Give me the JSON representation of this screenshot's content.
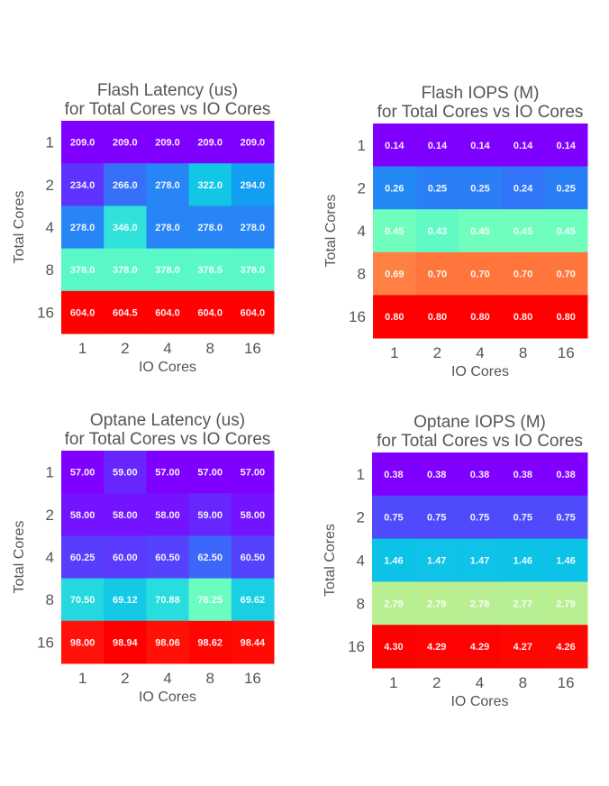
{
  "chart_data": [
    {
      "type": "heatmap",
      "id": "flash-latency",
      "title": "Flash Latency (us)\nfor Total Cores vs IO Cores",
      "xlabel": "IO Cores",
      "ylabel": "Total Cores",
      "x_categories": [
        "1",
        "2",
        "4",
        "8",
        "16"
      ],
      "y_categories": [
        "1",
        "2",
        "4",
        "8",
        "16"
      ],
      "values": [
        [
          209.0,
          209.0,
          209.0,
          209.0,
          209.0
        ],
        [
          234.0,
          266.0,
          278.0,
          322.0,
          294.0
        ],
        [
          278.0,
          346.0,
          278.0,
          278.0,
          278.0
        ],
        [
          378.0,
          378.0,
          378.0,
          378.5,
          378.0
        ],
        [
          604.0,
          604.5,
          604.0,
          604.0,
          604.0
        ]
      ],
      "labels": [
        [
          "209.0",
          "209.0",
          "209.0",
          "209.0",
          "209.0"
        ],
        [
          "234.0",
          "266.0",
          "278.0",
          "322.0",
          "294.0"
        ],
        [
          "278.0",
          "346.0",
          "278.0",
          "278.0",
          "278.0"
        ],
        [
          "378.0",
          "378.0",
          "378.0",
          "378.5",
          "378.0"
        ],
        [
          "604.0",
          "604.5",
          "604.0",
          "604.0",
          "604.0"
        ]
      ],
      "colormap": "rainbow",
      "colorbar": false
    },
    {
      "type": "heatmap",
      "id": "flash-iops",
      "title": "Flash IOPS (M)\nfor Total Cores vs IO Cores",
      "xlabel": "IO Cores",
      "ylabel": "Total Cores",
      "x_categories": [
        "1",
        "2",
        "4",
        "8",
        "16"
      ],
      "y_categories": [
        "1",
        "2",
        "4",
        "8",
        "16"
      ],
      "values": [
        [
          0.14,
          0.14,
          0.14,
          0.14,
          0.14
        ],
        [
          0.26,
          0.25,
          0.25,
          0.24,
          0.25
        ],
        [
          0.45,
          0.43,
          0.45,
          0.45,
          0.45
        ],
        [
          0.69,
          0.7,
          0.7,
          0.7,
          0.7
        ],
        [
          0.8,
          0.8,
          0.8,
          0.8,
          0.8
        ]
      ],
      "labels": [
        [
          "0.14",
          "0.14",
          "0.14",
          "0.14",
          "0.14"
        ],
        [
          "0.26",
          "0.25",
          "0.25",
          "0.24",
          "0.25"
        ],
        [
          "0.45",
          "0.43",
          "0.45",
          "0.45",
          "0.45"
        ],
        [
          "0.69",
          "0.70",
          "0.70",
          "0.70",
          "0.70"
        ],
        [
          "0.80",
          "0.80",
          "0.80",
          "0.80",
          "0.80"
        ]
      ],
      "colormap": "rainbow",
      "colorbar": false
    },
    {
      "type": "heatmap",
      "id": "optane-latency",
      "title": "Optane Latency (us)\nfor Total Cores vs IO Cores",
      "xlabel": "IO Cores",
      "ylabel": "Total Cores",
      "x_categories": [
        "1",
        "2",
        "4",
        "8",
        "16"
      ],
      "y_categories": [
        "1",
        "2",
        "4",
        "8",
        "16"
      ],
      "values": [
        [
          57.0,
          59.0,
          57.0,
          57.0,
          57.0
        ],
        [
          58.0,
          58.0,
          58.0,
          59.0,
          58.0
        ],
        [
          60.25,
          60.0,
          60.5,
          62.5,
          60.5
        ],
        [
          70.5,
          69.12,
          70.88,
          76.25,
          69.62
        ],
        [
          98.0,
          98.94,
          98.06,
          98.62,
          98.44
        ]
      ],
      "labels": [
        [
          "57.00",
          "59.00",
          "57.00",
          "57.00",
          "57.00"
        ],
        [
          "58.00",
          "58.00",
          "58.00",
          "59.00",
          "58.00"
        ],
        [
          "60.25",
          "60.00",
          "60.50",
          "62.50",
          "60.50"
        ],
        [
          "70.50",
          "69.12",
          "70.88",
          "76.25",
          "69.62"
        ],
        [
          "98.00",
          "98.94",
          "98.06",
          "98.62",
          "98.44"
        ]
      ],
      "colormap": "rainbow",
      "colorbar": false
    },
    {
      "type": "heatmap",
      "id": "optane-iops",
      "title": "Optane IOPS (M)\nfor Total Cores vs IO Cores",
      "xlabel": "IO Cores",
      "ylabel": "Total Cores",
      "x_categories": [
        "1",
        "2",
        "4",
        "8",
        "16"
      ],
      "y_categories": [
        "1",
        "2",
        "4",
        "8",
        "16"
      ],
      "values": [
        [
          0.38,
          0.38,
          0.38,
          0.38,
          0.38
        ],
        [
          0.75,
          0.75,
          0.75,
          0.75,
          0.75
        ],
        [
          1.46,
          1.47,
          1.47,
          1.46,
          1.46
        ],
        [
          2.79,
          2.79,
          2.78,
          2.77,
          2.79
        ],
        [
          4.3,
          4.29,
          4.29,
          4.27,
          4.26
        ]
      ],
      "labels": [
        [
          "0.38",
          "0.38",
          "0.38",
          "0.38",
          "0.38"
        ],
        [
          "0.75",
          "0.75",
          "0.75",
          "0.75",
          "0.75"
        ],
        [
          "1.46",
          "1.47",
          "1.47",
          "1.46",
          "1.46"
        ],
        [
          "2.79",
          "2.79",
          "2.78",
          "2.77",
          "2.79"
        ],
        [
          "4.30",
          "4.29",
          "4.29",
          "4.27",
          "4.26"
        ]
      ],
      "colormap": "rainbow",
      "colorbar": false
    }
  ]
}
